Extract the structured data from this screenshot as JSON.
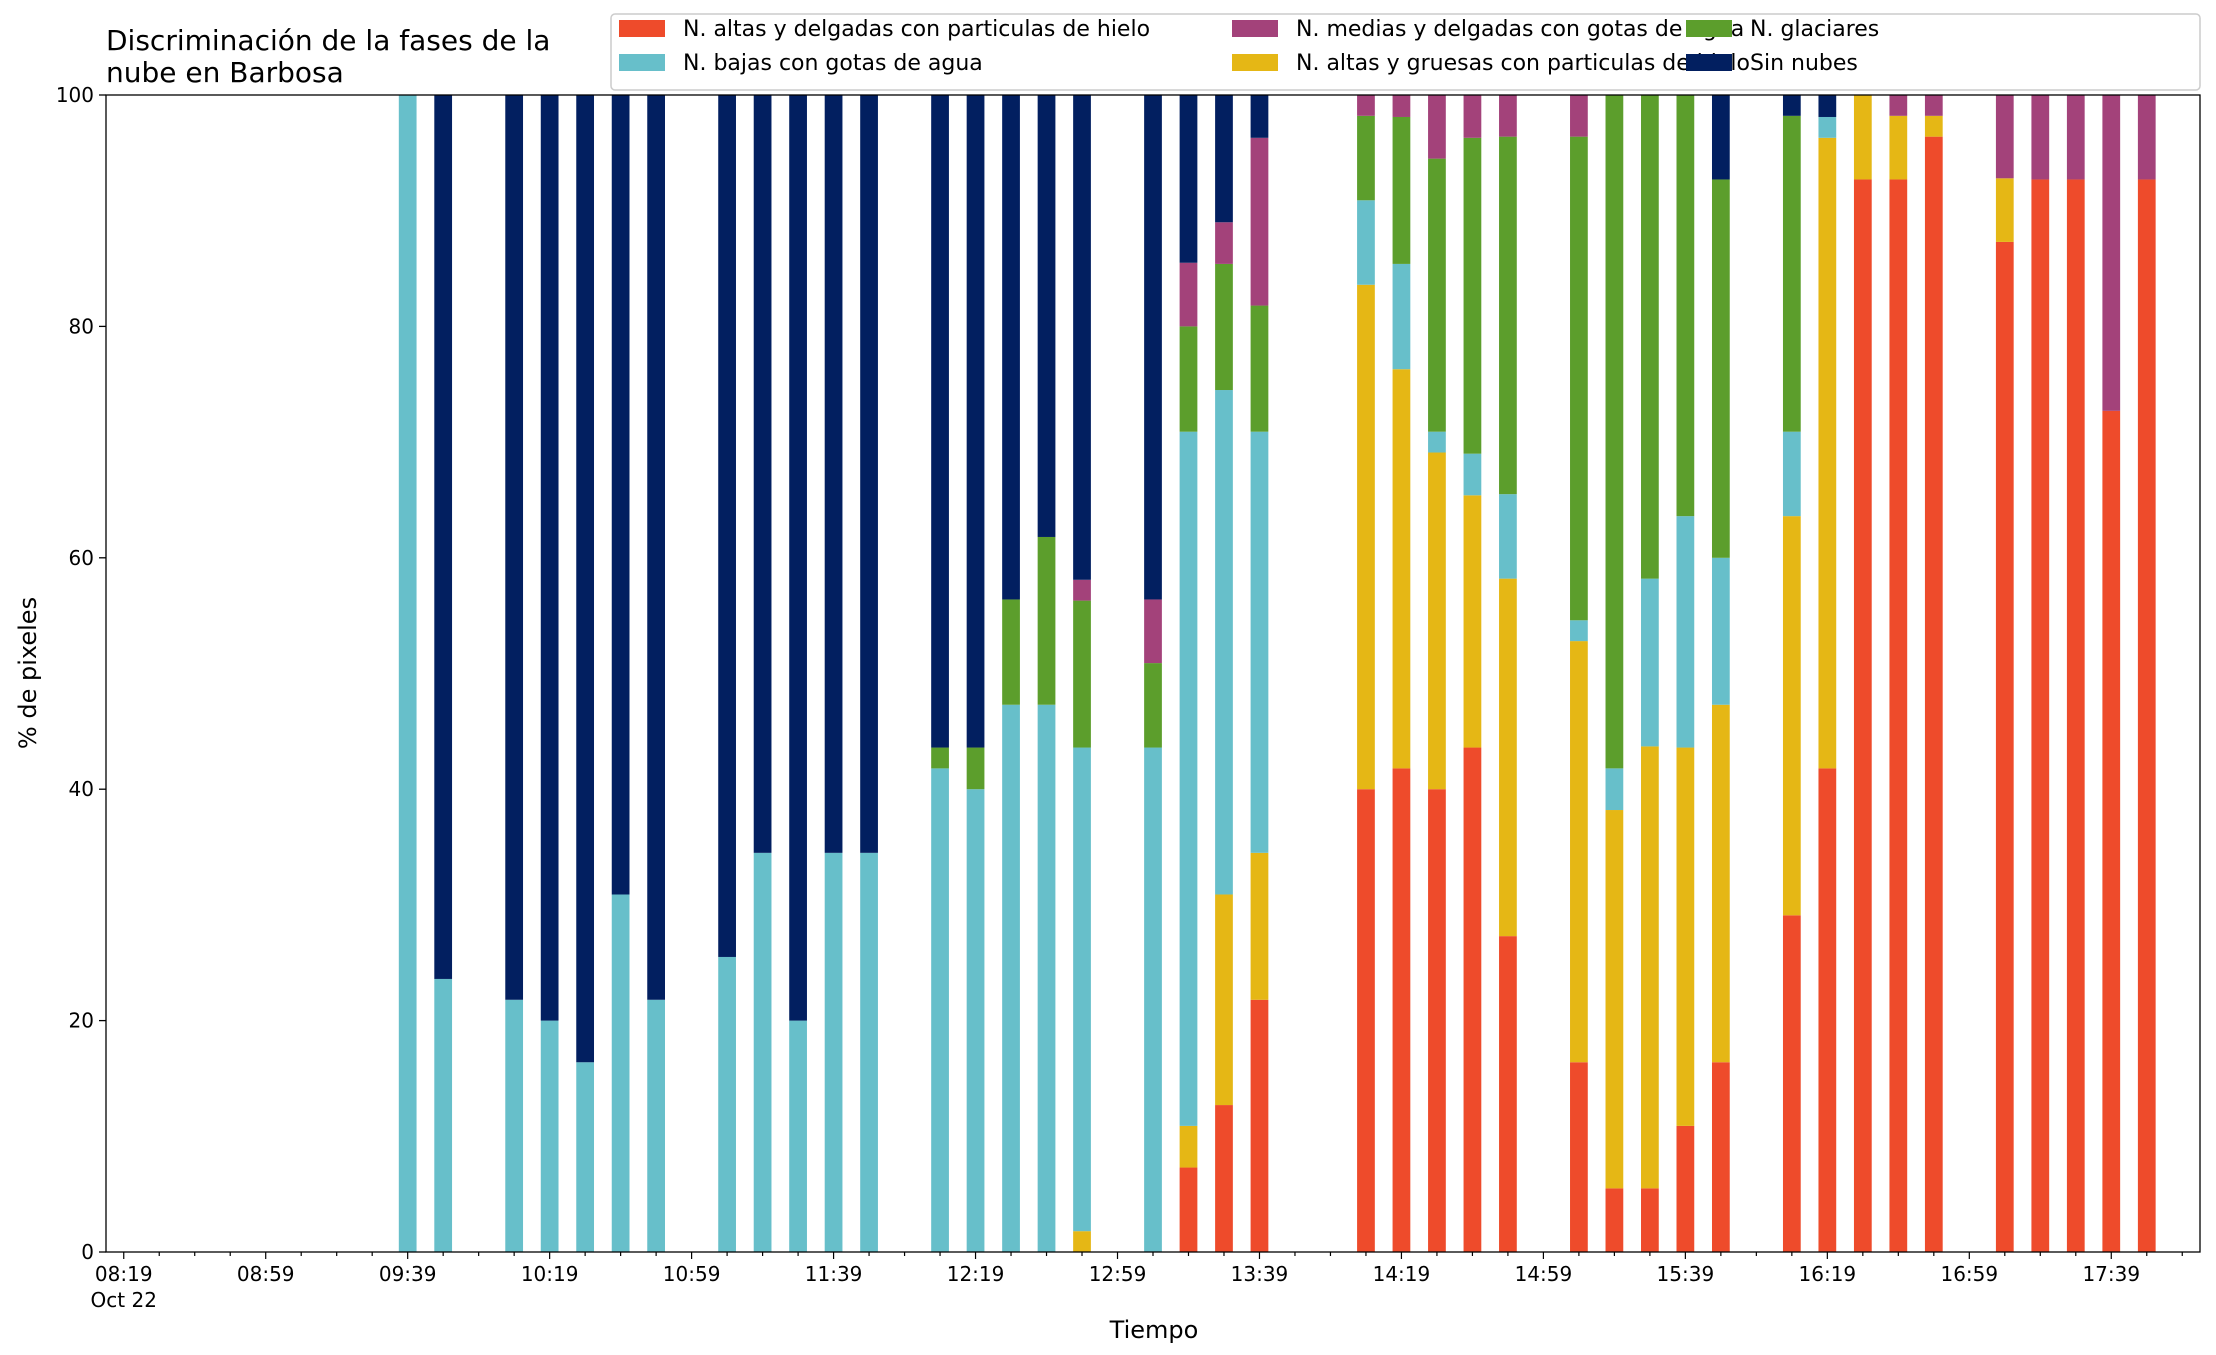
{
  "chart_data": {
    "type": "bar",
    "stacked": true,
    "title_lines": [
      "Discriminación de la fases de la",
      "nube en Barbosa"
    ],
    "xlabel": "Tiempo",
    "ylabel": "% de pixeles",
    "ylim": [
      0,
      100
    ],
    "yticks": [
      0,
      20,
      40,
      60,
      80,
      100
    ],
    "xlim_minutes": [
      -5,
      585
    ],
    "x_tick_labels": [
      {
        "t": 0,
        "label": "08:19",
        "sub": "Oct 22"
      },
      {
        "t": 40,
        "label": "08:59"
      },
      {
        "t": 80,
        "label": "09:39"
      },
      {
        "t": 120,
        "label": "10:19"
      },
      {
        "t": 160,
        "label": "10:59"
      },
      {
        "t": 200,
        "label": "11:39"
      },
      {
        "t": 240,
        "label": "12:19"
      },
      {
        "t": 280,
        "label": "12:59"
      },
      {
        "t": 320,
        "label": "13:39"
      },
      {
        "t": 360,
        "label": "14:19"
      },
      {
        "t": 400,
        "label": "14:59"
      },
      {
        "t": 440,
        "label": "15:39"
      },
      {
        "t": 480,
        "label": "16:19"
      },
      {
        "t": 520,
        "label": "16:59"
      },
      {
        "t": 560,
        "label": "17:39"
      }
    ],
    "x_minor_tick_step": 10,
    "legend_placement": "top-right",
    "legend_columns": 3,
    "series": [
      {
        "name": "N. altas y delgadas con particulas de hielo",
        "color": "#ee4b2b"
      },
      {
        "name": "N. altas y gruesas con particulas de hielo",
        "color": "#e5b715"
      },
      {
        "name": "N. bajas con gotas de agua",
        "color": "#67bfca"
      },
      {
        "name": "N. glaciares",
        "color": "#5c9e2c"
      },
      {
        "name": "N. medias y delgadas con gotas de agua",
        "color": "#a3427a"
      },
      {
        "name": "Sin nubes",
        "color": "#021f60"
      }
    ],
    "legend_order": [
      0,
      2,
      4,
      1,
      3,
      5
    ],
    "bar_width_minutes": 5,
    "bars": [
      {
        "time": "09:39",
        "values": [
          0,
          0,
          100,
          0,
          0,
          0
        ]
      },
      {
        "time": "09:49",
        "values": [
          0,
          0,
          23.6,
          0,
          0,
          76.4
        ]
      },
      {
        "time": "10:09",
        "values": [
          0,
          0,
          21.8,
          0,
          0,
          78.2
        ]
      },
      {
        "time": "10:19",
        "values": [
          0,
          0,
          20,
          0,
          0,
          80
        ]
      },
      {
        "time": "10:29",
        "values": [
          0,
          0,
          16.4,
          0,
          0,
          83.6
        ]
      },
      {
        "time": "10:39",
        "values": [
          0,
          0,
          30.9,
          0,
          0,
          69.1
        ]
      },
      {
        "time": "10:49",
        "values": [
          0,
          0,
          21.8,
          0,
          0,
          78.2
        ]
      },
      {
        "time": "11:09",
        "values": [
          0,
          0,
          25.5,
          0,
          0,
          74.5
        ]
      },
      {
        "time": "11:19",
        "values": [
          0,
          0,
          34.5,
          0,
          0,
          65.5
        ]
      },
      {
        "time": "11:29",
        "values": [
          0,
          0,
          20,
          0,
          0,
          80
        ]
      },
      {
        "time": "11:39",
        "values": [
          0,
          0,
          34.5,
          0,
          0,
          65.5
        ]
      },
      {
        "time": "11:49",
        "values": [
          0,
          0,
          34.5,
          0,
          0,
          65.5
        ]
      },
      {
        "time": "12:09",
        "values": [
          0,
          0,
          41.8,
          1.8,
          0,
          56.4
        ]
      },
      {
        "time": "12:19",
        "values": [
          0,
          0,
          40,
          3.6,
          0,
          56.4
        ]
      },
      {
        "time": "12:29",
        "values": [
          0,
          0,
          47.3,
          9.1,
          0,
          43.6
        ]
      },
      {
        "time": "12:39",
        "values": [
          0,
          0,
          47.3,
          14.5,
          0,
          38.2
        ]
      },
      {
        "time": "12:49",
        "values": [
          0,
          1.8,
          41.8,
          12.7,
          1.8,
          41.9
        ]
      },
      {
        "time": "13:09",
        "values": [
          0,
          0,
          43.6,
          7.3,
          5.5,
          43.6
        ]
      },
      {
        "time": "13:19",
        "values": [
          7.3,
          3.6,
          60,
          9.1,
          5.5,
          14.5
        ]
      },
      {
        "time": "13:29",
        "values": [
          12.7,
          18.2,
          43.6,
          10.9,
          3.6,
          11
        ]
      },
      {
        "time": "13:39",
        "values": [
          21.8,
          12.7,
          36.4,
          10.9,
          14.5,
          3.7
        ]
      },
      {
        "time": "14:09",
        "values": [
          40,
          43.6,
          7.3,
          7.3,
          1.8,
          0
        ]
      },
      {
        "time": "14:19",
        "values": [
          41.8,
          34.5,
          9.1,
          12.7,
          1.9,
          0
        ]
      },
      {
        "time": "14:29",
        "values": [
          40,
          29.1,
          1.8,
          23.6,
          5.5,
          0
        ]
      },
      {
        "time": "14:39",
        "values": [
          43.6,
          21.8,
          3.6,
          27.3,
          3.7,
          0
        ]
      },
      {
        "time": "14:49",
        "values": [
          27.3,
          30.9,
          7.3,
          30.9,
          3.6,
          0
        ]
      },
      {
        "time": "15:09",
        "values": [
          16.4,
          36.4,
          1.8,
          41.8,
          3.6,
          0
        ]
      },
      {
        "time": "15:19",
        "values": [
          5.5,
          32.7,
          3.6,
          58.2,
          0,
          0
        ]
      },
      {
        "time": "15:29",
        "values": [
          5.5,
          38.2,
          14.5,
          41.8,
          0,
          0
        ]
      },
      {
        "time": "15:39",
        "values": [
          10.9,
          32.7,
          20,
          36.4,
          0,
          0
        ]
      },
      {
        "time": "15:49",
        "values": [
          16.4,
          30.9,
          12.7,
          32.7,
          0,
          7.3
        ]
      },
      {
        "time": "16:09",
        "values": [
          29.1,
          34.5,
          7.3,
          27.3,
          0,
          1.8
        ]
      },
      {
        "time": "16:19",
        "values": [
          41.8,
          54.5,
          1.8,
          0,
          0,
          1.9
        ]
      },
      {
        "time": "16:29",
        "values": [
          92.7,
          7.3,
          0,
          0,
          0,
          0
        ]
      },
      {
        "time": "16:39",
        "values": [
          92.7,
          5.5,
          0,
          0,
          1.8,
          0
        ]
      },
      {
        "time": "16:49",
        "values": [
          96.4,
          1.8,
          0,
          0,
          1.8,
          0
        ]
      },
      {
        "time": "17:09",
        "values": [
          87.3,
          5.5,
          0,
          0,
          7.2,
          0
        ]
      },
      {
        "time": "17:19",
        "values": [
          92.7,
          0,
          0,
          0,
          7.3,
          0
        ]
      },
      {
        "time": "17:29",
        "values": [
          92.7,
          0,
          0,
          0,
          7.3,
          0
        ]
      },
      {
        "time": "17:39",
        "values": [
          72.7,
          0,
          0,
          0,
          27.3,
          0
        ]
      },
      {
        "time": "17:49",
        "values": [
          92.7,
          0,
          0,
          0,
          7.3,
          0
        ]
      }
    ]
  }
}
